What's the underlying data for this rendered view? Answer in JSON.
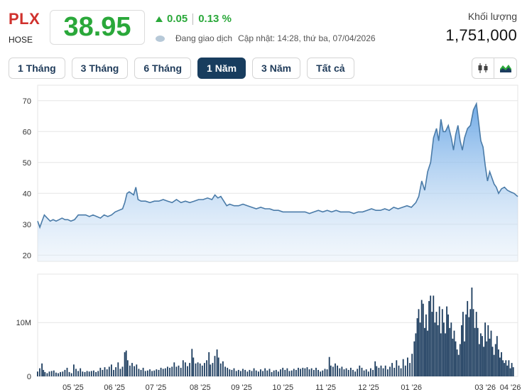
{
  "header": {
    "ticker": "PLX",
    "exchange": "HOSE",
    "price": "38.95",
    "change": "0.05",
    "change_pct": "0.13 %",
    "status": "Đang giao dịch",
    "updated": "Cập nhật: 14:28, thứ ba, 07/04/2026",
    "volume_label": "Khối lượng",
    "volume_value": "1,751,000"
  },
  "tabs": [
    {
      "label": "1 Tháng",
      "active": false
    },
    {
      "label": "3 Tháng",
      "active": false
    },
    {
      "label": "6 Tháng",
      "active": false
    },
    {
      "label": "1 Năm",
      "active": true
    },
    {
      "label": "3 Năm",
      "active": false
    },
    {
      "label": "Tất cả",
      "active": false
    }
  ],
  "tools": [
    {
      "icon": "candlestick-icon",
      "active": false
    },
    {
      "icon": "area-chart-icon",
      "active": true
    }
  ],
  "colors": {
    "up": "#2aa83a",
    "down": "#d0312d",
    "line": "#4a7ba8",
    "bar": "#1c3c5e",
    "active_tab": "#183d5e"
  },
  "chart_data": {
    "type": "area",
    "x_tick_labels": [
      "05 '25",
      "06 '25",
      "07 '25",
      "08 '25",
      "09 '25",
      "10 '25",
      "11 '25",
      "12 '25",
      "01 '26",
      "03 '26",
      "04 '26"
    ],
    "price_axis": {
      "ticks": [
        20,
        30,
        40,
        50,
        60,
        70
      ],
      "ylim": [
        18,
        75
      ]
    },
    "volume_axis": {
      "ticks": [
        {
          "value": 0,
          "label": "0"
        },
        {
          "value": 10000000,
          "label": "10M"
        }
      ],
      "ylim": [
        0,
        19000000
      ]
    },
    "grid": true,
    "price": [
      [
        0,
        31
      ],
      [
        3,
        29
      ],
      [
        6,
        31
      ],
      [
        9,
        33
      ],
      [
        13,
        32
      ],
      [
        17,
        31
      ],
      [
        21,
        31.5
      ],
      [
        25,
        31
      ],
      [
        29,
        31.5
      ],
      [
        33,
        32
      ],
      [
        37,
        31.5
      ],
      [
        41,
        31.5
      ],
      [
        45,
        31
      ],
      [
        50,
        31.5
      ],
      [
        55,
        33
      ],
      [
        60,
        33
      ],
      [
        65,
        33
      ],
      [
        70,
        32.5
      ],
      [
        75,
        33
      ],
      [
        80,
        32.5
      ],
      [
        85,
        32
      ],
      [
        90,
        33
      ],
      [
        95,
        32.5
      ],
      [
        100,
        33
      ],
      [
        105,
        34
      ],
      [
        110,
        34.5
      ],
      [
        115,
        35
      ],
      [
        118,
        37
      ],
      [
        121,
        40
      ],
      [
        124,
        40.5
      ],
      [
        127,
        40
      ],
      [
        130,
        39.5
      ],
      [
        133,
        42
      ],
      [
        136,
        38
      ],
      [
        140,
        37.5
      ],
      [
        146,
        37.5
      ],
      [
        152,
        37
      ],
      [
        158,
        37.5
      ],
      [
        164,
        37.5
      ],
      [
        170,
        38
      ],
      [
        176,
        37.5
      ],
      [
        182,
        37
      ],
      [
        188,
        38
      ],
      [
        194,
        37
      ],
      [
        200,
        37.5
      ],
      [
        206,
        37
      ],
      [
        212,
        37.5
      ],
      [
        218,
        38
      ],
      [
        224,
        38
      ],
      [
        230,
        38.5
      ],
      [
        236,
        38
      ],
      [
        240,
        39.5
      ],
      [
        244,
        38.5
      ],
      [
        248,
        39
      ],
      [
        252,
        37.5
      ],
      [
        256,
        36
      ],
      [
        260,
        36.5
      ],
      [
        266,
        36
      ],
      [
        272,
        36
      ],
      [
        278,
        36.5
      ],
      [
        284,
        36
      ],
      [
        290,
        35.5
      ],
      [
        296,
        35
      ],
      [
        302,
        35.5
      ],
      [
        308,
        35
      ],
      [
        314,
        35
      ],
      [
        320,
        34.5
      ],
      [
        326,
        34.5
      ],
      [
        332,
        34
      ],
      [
        338,
        34
      ],
      [
        344,
        34
      ],
      [
        350,
        34
      ],
      [
        356,
        34
      ],
      [
        362,
        34
      ],
      [
        368,
        33.5
      ],
      [
        374,
        34
      ],
      [
        380,
        34.5
      ],
      [
        386,
        34
      ],
      [
        392,
        34.5
      ],
      [
        398,
        34
      ],
      [
        404,
        34.5
      ],
      [
        410,
        34
      ],
      [
        416,
        34
      ],
      [
        422,
        34
      ],
      [
        428,
        33.5
      ],
      [
        434,
        34
      ],
      [
        440,
        34
      ],
      [
        446,
        34.5
      ],
      [
        452,
        35
      ],
      [
        458,
        34.5
      ],
      [
        464,
        34.5
      ],
      [
        470,
        35
      ],
      [
        476,
        34.5
      ],
      [
        482,
        35.5
      ],
      [
        488,
        35
      ],
      [
        494,
        35.5
      ],
      [
        500,
        36
      ],
      [
        506,
        35.5
      ],
      [
        512,
        37
      ],
      [
        516,
        39
      ],
      [
        520,
        44
      ],
      [
        524,
        41
      ],
      [
        528,
        47
      ],
      [
        532,
        50
      ],
      [
        536,
        58
      ],
      [
        540,
        61
      ],
      [
        543,
        57
      ],
      [
        546,
        64
      ],
      [
        549,
        60
      ],
      [
        552,
        60
      ],
      [
        556,
        62
      ],
      [
        560,
        58
      ],
      [
        563,
        54
      ],
      [
        566,
        59
      ],
      [
        569,
        62
      ],
      [
        572,
        57
      ],
      [
        575,
        54
      ],
      [
        578,
        58
      ],
      [
        582,
        61
      ],
      [
        586,
        62
      ],
      [
        590,
        67
      ],
      [
        594,
        69
      ],
      [
        597,
        63
      ],
      [
        600,
        57
      ],
      [
        603,
        55
      ],
      [
        606,
        49
      ],
      [
        609,
        44
      ],
      [
        612,
        47
      ],
      [
        615,
        45
      ],
      [
        618,
        43
      ],
      [
        621,
        42
      ],
      [
        624,
        40
      ],
      [
        628,
        41.5
      ],
      [
        632,
        42
      ],
      [
        636,
        41
      ],
      [
        640,
        40.5
      ],
      [
        645,
        40
      ],
      [
        650,
        38.95
      ]
    ],
    "volume": [
      [
        0,
        0.9
      ],
      [
        3,
        1.5
      ],
      [
        6,
        2.4
      ],
      [
        8,
        1.2
      ],
      [
        10,
        0.8
      ],
      [
        13,
        0.6
      ],
      [
        16,
        0.9
      ],
      [
        19,
        1.0
      ],
      [
        22,
        1.1
      ],
      [
        25,
        0.7
      ],
      [
        28,
        0.6
      ],
      [
        31,
        0.8
      ],
      [
        34,
        0.9
      ],
      [
        37,
        1.2
      ],
      [
        40,
        1.6
      ],
      [
        43,
        0.8
      ],
      [
        46,
        0.6
      ],
      [
        49,
        2.2
      ],
      [
        52,
        1.4
      ],
      [
        55,
        1.0
      ],
      [
        58,
        1.5
      ],
      [
        61,
        0.9
      ],
      [
        64,
        0.8
      ],
      [
        67,
        1.0
      ],
      [
        70,
        0.9
      ],
      [
        73,
        1.0
      ],
      [
        76,
        1.1
      ],
      [
        79,
        0.8
      ],
      [
        82,
        1.0
      ],
      [
        85,
        1.6
      ],
      [
        88,
        1.2
      ],
      [
        91,
        1.7
      ],
      [
        94,
        1.3
      ],
      [
        97,
        1.8
      ],
      [
        100,
        2.2
      ],
      [
        103,
        1.2
      ],
      [
        106,
        1.7
      ],
      [
        109,
        2.6
      ],
      [
        112,
        1.4
      ],
      [
        115,
        1.8
      ],
      [
        118,
        4.5
      ],
      [
        120,
        4.8
      ],
      [
        122,
        3.0
      ],
      [
        125,
        2.0
      ],
      [
        128,
        2.5
      ],
      [
        131,
        1.9
      ],
      [
        134,
        2.2
      ],
      [
        137,
        1.4
      ],
      [
        140,
        1.2
      ],
      [
        143,
        1.6
      ],
      [
        146,
        1.0
      ],
      [
        149,
        1.1
      ],
      [
        152,
        1.3
      ],
      [
        155,
        1.0
      ],
      [
        158,
        1.1
      ],
      [
        161,
        1.3
      ],
      [
        164,
        1.2
      ],
      [
        167,
        1.6
      ],
      [
        170,
        1.4
      ],
      [
        173,
        1.5
      ],
      [
        176,
        1.8
      ],
      [
        179,
        1.6
      ],
      [
        182,
        1.8
      ],
      [
        185,
        2.6
      ],
      [
        188,
        1.8
      ],
      [
        191,
        2.0
      ],
      [
        194,
        1.6
      ],
      [
        197,
        3.0
      ],
      [
        200,
        2.6
      ],
      [
        203,
        1.9
      ],
      [
        206,
        2.5
      ],
      [
        209,
        5.1
      ],
      [
        211,
        3.5
      ],
      [
        214,
        2.4
      ],
      [
        217,
        2.6
      ],
      [
        220,
        2.4
      ],
      [
        223,
        2.0
      ],
      [
        226,
        2.5
      ],
      [
        229,
        3.0
      ],
      [
        232,
        4.5
      ],
      [
        234,
        2.2
      ],
      [
        237,
        2.5
      ],
      [
        240,
        3.8
      ],
      [
        243,
        5.0
      ],
      [
        245,
        3.5
      ],
      [
        248,
        2.4
      ],
      [
        251,
        2.8
      ],
      [
        254,
        1.8
      ],
      [
        257,
        1.6
      ],
      [
        260,
        1.3
      ],
      [
        263,
        1.2
      ],
      [
        266,
        1.5
      ],
      [
        269,
        1.0
      ],
      [
        272,
        1.2
      ],
      [
        275,
        1.0
      ],
      [
        278,
        1.4
      ],
      [
        281,
        1.2
      ],
      [
        284,
        0.9
      ],
      [
        287,
        1.2
      ],
      [
        290,
        1.0
      ],
      [
        293,
        1.5
      ],
      [
        296,
        1.1
      ],
      [
        299,
        0.9
      ],
      [
        302,
        1.3
      ],
      [
        305,
        1.0
      ],
      [
        308,
        1.5
      ],
      [
        311,
        1.1
      ],
      [
        314,
        1.4
      ],
      [
        317,
        0.8
      ],
      [
        320,
        1.1
      ],
      [
        323,
        1.2
      ],
      [
        326,
        0.9
      ],
      [
        329,
        1.3
      ],
      [
        332,
        1.6
      ],
      [
        335,
        1.2
      ],
      [
        338,
        1.5
      ],
      [
        341,
        1.0
      ],
      [
        344,
        1.1
      ],
      [
        347,
        1.4
      ],
      [
        350,
        1.2
      ],
      [
        353,
        1.6
      ],
      [
        356,
        1.4
      ],
      [
        359,
        1.6
      ],
      [
        362,
        1.5
      ],
      [
        365,
        1.7
      ],
      [
        368,
        1.3
      ],
      [
        371,
        1.5
      ],
      [
        374,
        1.2
      ],
      [
        377,
        1.6
      ],
      [
        380,
        1.2
      ],
      [
        383,
        0.9
      ],
      [
        386,
        1.1
      ],
      [
        389,
        1.4
      ],
      [
        392,
        1.3
      ],
      [
        395,
        3.6
      ],
      [
        397,
        2.0
      ],
      [
        400,
        1.8
      ],
      [
        403,
        2.4
      ],
      [
        406,
        2.0
      ],
      [
        409,
        1.5
      ],
      [
        412,
        1.8
      ],
      [
        415,
        1.3
      ],
      [
        418,
        1.5
      ],
      [
        421,
        1.2
      ],
      [
        424,
        1.6
      ],
      [
        427,
        1.2
      ],
      [
        430,
        0.9
      ],
      [
        433,
        1.4
      ],
      [
        436,
        2.0
      ],
      [
        439,
        1.6
      ],
      [
        442,
        1.1
      ],
      [
        445,
        1.3
      ],
      [
        448,
        0.9
      ],
      [
        451,
        1.5
      ],
      [
        454,
        1.2
      ],
      [
        457,
        2.8
      ],
      [
        459,
        1.9
      ],
      [
        462,
        1.6
      ],
      [
        465,
        2.0
      ],
      [
        468,
        1.5
      ],
      [
        471,
        2.0
      ],
      [
        474,
        1.3
      ],
      [
        477,
        1.8
      ],
      [
        480,
        2.5
      ],
      [
        483,
        1.6
      ],
      [
        486,
        3.0
      ],
      [
        489,
        2.0
      ],
      [
        492,
        1.5
      ],
      [
        495,
        3.2
      ],
      [
        498,
        2.0
      ],
      [
        501,
        3.5
      ],
      [
        504,
        2.5
      ],
      [
        507,
        4.2
      ],
      [
        510,
        6.5
      ],
      [
        512,
        8.0
      ],
      [
        514,
        10.8
      ],
      [
        516,
        12.5
      ],
      [
        518,
        10.0
      ],
      [
        520,
        14.2
      ],
      [
        522,
        13.5
      ],
      [
        524,
        9.0
      ],
      [
        526,
        11.5
      ],
      [
        528,
        8.5
      ],
      [
        530,
        14.0
      ],
      [
        532,
        15.0
      ],
      [
        534,
        12.0
      ],
      [
        536,
        15.0
      ],
      [
        538,
        10.0
      ],
      [
        540,
        12.0
      ],
      [
        542,
        9.5
      ],
      [
        544,
        13.0
      ],
      [
        546,
        8.0
      ],
      [
        548,
        12.5
      ],
      [
        550,
        10.0
      ],
      [
        552,
        8.0
      ],
      [
        554,
        13.0
      ],
      [
        556,
        11.5
      ],
      [
        558,
        9.0
      ],
      [
        560,
        10.0
      ],
      [
        562,
        7.0
      ],
      [
        564,
        8.5
      ],
      [
        566,
        6.5
      ],
      [
        568,
        5.0
      ],
      [
        570,
        4.0
      ],
      [
        572,
        6.0
      ],
      [
        574,
        9.5
      ],
      [
        576,
        12.0
      ],
      [
        578,
        6.5
      ],
      [
        580,
        11.5
      ],
      [
        582,
        14.0
      ],
      [
        584,
        11.0
      ],
      [
        586,
        12.5
      ],
      [
        588,
        16.5
      ],
      [
        590,
        12.5
      ],
      [
        592,
        9.0
      ],
      [
        594,
        12.0
      ],
      [
        596,
        9.0
      ],
      [
        598,
        6.0
      ],
      [
        600,
        8.0
      ],
      [
        602,
        7.5
      ],
      [
        604,
        5.5
      ],
      [
        606,
        10.0
      ],
      [
        608,
        6.5
      ],
      [
        610,
        9.5
      ],
      [
        612,
        7.0
      ],
      [
        614,
        8.5
      ],
      [
        616,
        5.5
      ],
      [
        618,
        4.0
      ],
      [
        620,
        6.0
      ],
      [
        622,
        7.5
      ],
      [
        624,
        5.0
      ],
      [
        626,
        3.5
      ],
      [
        628,
        4.5
      ],
      [
        630,
        3.0
      ],
      [
        632,
        2.5
      ],
      [
        634,
        3.0
      ],
      [
        636,
        2.0
      ],
      [
        638,
        3.0
      ],
      [
        640,
        1.5
      ],
      [
        642,
        2.5
      ],
      [
        644,
        1.7
      ]
    ]
  }
}
